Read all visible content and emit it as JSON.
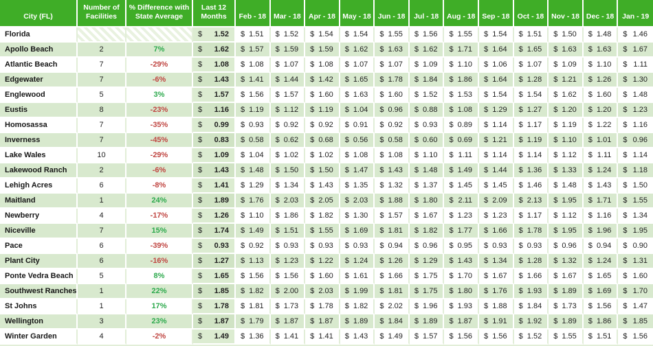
{
  "colors": {
    "header_green": "#3fad27",
    "row_green": "#d8e9ce",
    "positive_pct": "#2ca94c",
    "negative_pct": "#c04642"
  },
  "table": {
    "currency": "$",
    "columns": [
      "City (FL)",
      "Number of Facilities",
      "% Difference with State Average",
      "Last 12 Months",
      "Feb - 18",
      "Mar - 18",
      "Apr - 18",
      "May - 18",
      "Jun - 18",
      "Jul - 18",
      "Aug - 18",
      "Sep - 18",
      "Oct - 18",
      "Nov - 18",
      "Dec - 18",
      "Jan - 19"
    ],
    "rows": [
      {
        "city": "Florida",
        "facilities": "",
        "pct_diff": "",
        "hatched": true,
        "last_12_months": "1.52",
        "monthly": [
          "1.51",
          "1.52",
          "1.54",
          "1.54",
          "1.55",
          "1.56",
          "1.55",
          "1.54",
          "1.51",
          "1.50",
          "1.48",
          "1.46"
        ]
      },
      {
        "city": "Apollo Beach",
        "facilities": "2",
        "pct_diff": "7%",
        "hatched": false,
        "last_12_months": "1.62",
        "monthly": [
          "1.57",
          "1.59",
          "1.59",
          "1.62",
          "1.63",
          "1.62",
          "1.71",
          "1.64",
          "1.65",
          "1.63",
          "1.63",
          "1.67"
        ]
      },
      {
        "city": "Atlantic Beach",
        "facilities": "7",
        "pct_diff": "-29%",
        "hatched": false,
        "last_12_months": "1.08",
        "monthly": [
          "1.08",
          "1.07",
          "1.08",
          "1.07",
          "1.07",
          "1.09",
          "1.10",
          "1.06",
          "1.07",
          "1.09",
          "1.10",
          "1.11"
        ]
      },
      {
        "city": "Edgewater",
        "facilities": "7",
        "pct_diff": "-6%",
        "hatched": false,
        "last_12_months": "1.43",
        "monthly": [
          "1.41",
          "1.44",
          "1.42",
          "1.65",
          "1.78",
          "1.84",
          "1.86",
          "1.64",
          "1.28",
          "1.21",
          "1.26",
          "1.30"
        ]
      },
      {
        "city": "Englewood",
        "facilities": "5",
        "pct_diff": "3%",
        "hatched": false,
        "last_12_months": "1.57",
        "monthly": [
          "1.56",
          "1.57",
          "1.60",
          "1.63",
          "1.60",
          "1.52",
          "1.53",
          "1.54",
          "1.54",
          "1.62",
          "1.60",
          "1.48"
        ]
      },
      {
        "city": "Eustis",
        "facilities": "8",
        "pct_diff": "-23%",
        "hatched": false,
        "last_12_months": "1.16",
        "monthly": [
          "1.19",
          "1.12",
          "1.19",
          "1.04",
          "0.96",
          "0.88",
          "1.08",
          "1.29",
          "1.27",
          "1.20",
          "1.20",
          "1.23"
        ]
      },
      {
        "city": "Homosassa",
        "facilities": "7",
        "pct_diff": "-35%",
        "hatched": false,
        "last_12_months": "0.99",
        "monthly": [
          "0.93",
          "0.92",
          "0.92",
          "0.91",
          "0.92",
          "0.93",
          "0.89",
          "1.14",
          "1.17",
          "1.19",
          "1.22",
          "1.16"
        ]
      },
      {
        "city": "Inverness",
        "facilities": "7",
        "pct_diff": "-45%",
        "hatched": false,
        "last_12_months": "0.83",
        "monthly": [
          "0.58",
          "0.62",
          "0.68",
          "0.56",
          "0.58",
          "0.60",
          "0.69",
          "1.21",
          "1.19",
          "1.10",
          "1.01",
          "0.96"
        ]
      },
      {
        "city": "Lake Wales",
        "facilities": "10",
        "pct_diff": "-29%",
        "hatched": false,
        "last_12_months": "1.09",
        "monthly": [
          "1.04",
          "1.02",
          "1.02",
          "1.08",
          "1.08",
          "1.10",
          "1.11",
          "1.14",
          "1.14",
          "1.12",
          "1.11",
          "1.14"
        ]
      },
      {
        "city": "Lakewood Ranch",
        "facilities": "2",
        "pct_diff": "-6%",
        "hatched": false,
        "last_12_months": "1.43",
        "monthly": [
          "1.48",
          "1.50",
          "1.50",
          "1.47",
          "1.43",
          "1.48",
          "1.49",
          "1.44",
          "1.36",
          "1.33",
          "1.24",
          "1.18"
        ]
      },
      {
        "city": "Lehigh Acres",
        "facilities": "6",
        "pct_diff": "-8%",
        "hatched": false,
        "last_12_months": "1.41",
        "monthly": [
          "1.29",
          "1.34",
          "1.43",
          "1.35",
          "1.32",
          "1.37",
          "1.45",
          "1.45",
          "1.46",
          "1.48",
          "1.43",
          "1.50"
        ]
      },
      {
        "city": "Maitland",
        "facilities": "1",
        "pct_diff": "24%",
        "hatched": false,
        "last_12_months": "1.89",
        "monthly": [
          "1.76",
          "2.03",
          "2.05",
          "2.03",
          "1.88",
          "1.80",
          "2.11",
          "2.09",
          "2.13",
          "1.95",
          "1.71",
          "1.55"
        ]
      },
      {
        "city": "Newberry",
        "facilities": "4",
        "pct_diff": "-17%",
        "hatched": false,
        "last_12_months": "1.26",
        "monthly": [
          "1.10",
          "1.86",
          "1.82",
          "1.30",
          "1.57",
          "1.67",
          "1.23",
          "1.23",
          "1.17",
          "1.12",
          "1.16",
          "1.34"
        ]
      },
      {
        "city": "Niceville",
        "facilities": "7",
        "pct_diff": "15%",
        "hatched": false,
        "last_12_months": "1.74",
        "monthly": [
          "1.49",
          "1.51",
          "1.55",
          "1.69",
          "1.81",
          "1.82",
          "1.77",
          "1.66",
          "1.78",
          "1.95",
          "1.96",
          "1.95"
        ]
      },
      {
        "city": "Pace",
        "facilities": "6",
        "pct_diff": "-39%",
        "hatched": false,
        "last_12_months": "0.93",
        "monthly": [
          "0.92",
          "0.93",
          "0.93",
          "0.93",
          "0.94",
          "0.96",
          "0.95",
          "0.93",
          "0.93",
          "0.96",
          "0.94",
          "0.90"
        ]
      },
      {
        "city": "Plant City",
        "facilities": "6",
        "pct_diff": "-16%",
        "hatched": false,
        "last_12_months": "1.27",
        "monthly": [
          "1.13",
          "1.23",
          "1.22",
          "1.24",
          "1.26",
          "1.29",
          "1.43",
          "1.34",
          "1.28",
          "1.32",
          "1.24",
          "1.31"
        ]
      },
      {
        "city": "Ponte Vedra Beach",
        "facilities": "5",
        "pct_diff": "8%",
        "hatched": false,
        "last_12_months": "1.65",
        "monthly": [
          "1.56",
          "1.56",
          "1.60",
          "1.61",
          "1.66",
          "1.75",
          "1.70",
          "1.67",
          "1.66",
          "1.67",
          "1.65",
          "1.60"
        ]
      },
      {
        "city": "Southwest Ranches",
        "facilities": "1",
        "pct_diff": "22%",
        "hatched": false,
        "last_12_months": "1.85",
        "monthly": [
          "1.82",
          "2.00",
          "2.03",
          "1.99",
          "1.81",
          "1.75",
          "1.80",
          "1.76",
          "1.93",
          "1.89",
          "1.69",
          "1.70"
        ]
      },
      {
        "city": "St Johns",
        "facilities": "1",
        "pct_diff": "17%",
        "hatched": false,
        "last_12_months": "1.78",
        "monthly": [
          "1.81",
          "1.73",
          "1.78",
          "1.82",
          "2.02",
          "1.96",
          "1.93",
          "1.88",
          "1.84",
          "1.73",
          "1.56",
          "1.47"
        ]
      },
      {
        "city": "Wellington",
        "facilities": "3",
        "pct_diff": "23%",
        "hatched": false,
        "last_12_months": "1.87",
        "monthly": [
          "1.79",
          "1.87",
          "1.87",
          "1.89",
          "1.84",
          "1.89",
          "1.87",
          "1.91",
          "1.92",
          "1.89",
          "1.86",
          "1.85"
        ]
      },
      {
        "city": "Winter Garden",
        "facilities": "4",
        "pct_diff": "-2%",
        "hatched": false,
        "last_12_months": "1.49",
        "monthly": [
          "1.36",
          "1.41",
          "1.41",
          "1.43",
          "1.49",
          "1.57",
          "1.56",
          "1.56",
          "1.52",
          "1.55",
          "1.51",
          "1.56"
        ]
      }
    ]
  }
}
